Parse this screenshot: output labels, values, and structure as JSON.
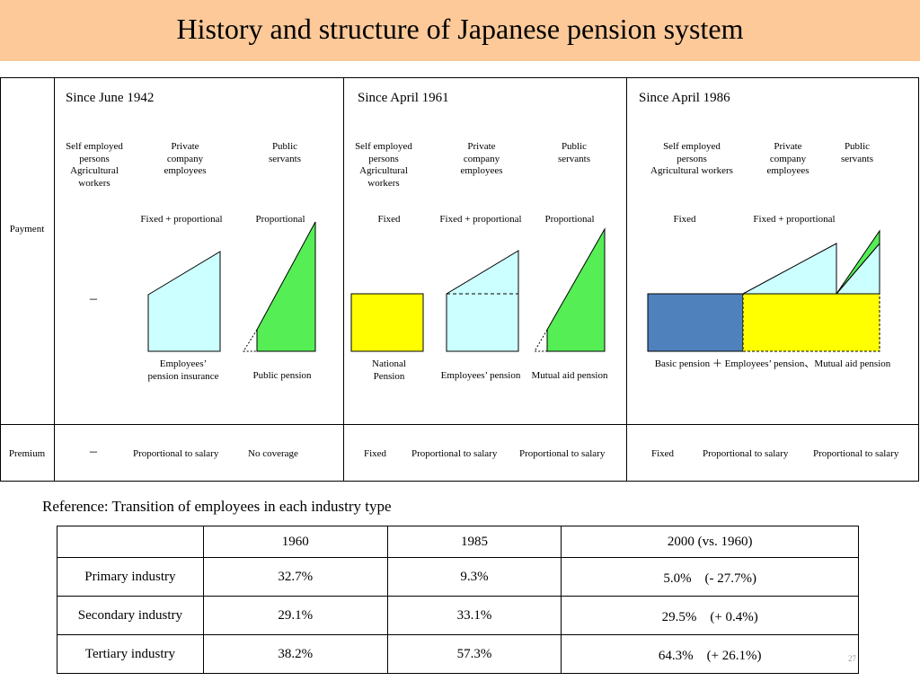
{
  "title": "History and structure of Japanese pension system",
  "row_labels": {
    "payment": "Payment",
    "premium": "Premium"
  },
  "period1942": {
    "heading": "Since June 1942",
    "groups": {
      "self_employed": [
        "Self employed",
        "persons",
        "Agricultural",
        "workers"
      ],
      "private": [
        "Private",
        "company",
        "employees"
      ],
      "public": [
        "Public",
        "servants"
      ]
    },
    "payment": {
      "self_employed": "–",
      "private": "Fixed + proportional",
      "public": "Proportional"
    },
    "schemes": {
      "private": [
        "Employees’",
        "pension insurance"
      ],
      "public": "Public pension"
    },
    "premium": {
      "self_employed": "–",
      "private": "Proportional to salary",
      "public": "No coverage"
    }
  },
  "period1961": {
    "heading": "Since April 1961",
    "groups": {
      "self_employed": [
        "Self employed",
        "persons",
        "Agricultural",
        "workers"
      ],
      "private": [
        "Private",
        "company",
        "employees"
      ],
      "public": [
        "Public",
        "servants"
      ]
    },
    "payment": {
      "self_employed": "Fixed",
      "private": "Fixed + proportional",
      "public": "Proportional"
    },
    "schemes": {
      "self_employed": [
        "National",
        "Pension"
      ],
      "private": "Employees’ pension",
      "public": "Mutual aid pension"
    },
    "premium": {
      "self_employed": "Fixed",
      "private": "Proportional to salary",
      "public": "Proportional to salary"
    }
  },
  "period1986": {
    "heading": "Since April 1986",
    "groups": {
      "self_employed": [
        "Self employed",
        "persons",
        "Agricultural workers"
      ],
      "private": [
        "Private",
        "company",
        "employees"
      ],
      "public": [
        "Public",
        "servants"
      ]
    },
    "payment": {
      "self_employed": "Fixed",
      "private": "Fixed + proportional"
    },
    "schemes": {
      "combined": "Basic pension ＋ Employees’ pension、Mutual aid pension"
    },
    "premium": {
      "self_employed": "Fixed",
      "private": "Proportional to salary",
      "public": "Proportional to salary"
    }
  },
  "colors": {
    "title_bg": "#fdc999",
    "light_blue": "#ccffff",
    "green": "#55ee55",
    "yellow": "#ffff00",
    "blue": "#4f81bd"
  },
  "reference": {
    "heading": "Reference: Transition of employees in each industry type",
    "columns": [
      "",
      "1960",
      "1985",
      "2000 (vs. 1960)"
    ],
    "rows": [
      [
        "Primary industry",
        "32.7%",
        "9.3%",
        "5.0%　(- 27.7%)"
      ],
      [
        "Secondary industry",
        "29.1%",
        "33.1%",
        "29.5%　(+ 0.4%)"
      ],
      [
        "Tertiary industry",
        "38.2%",
        "57.3%",
        "64.3%　(+ 26.1%)"
      ]
    ]
  },
  "page_number": "27"
}
